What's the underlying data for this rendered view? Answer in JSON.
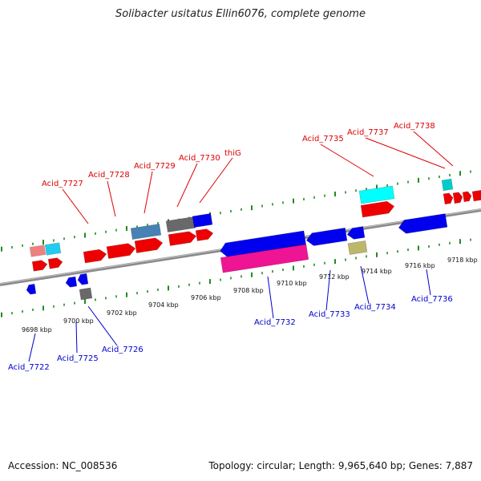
{
  "title": "Solibacter usitatus Ellin6076, complete genome",
  "footer": {
    "accession": "Accession: NC_008536",
    "summary": "Topology: circular; Length: 9,965,640 bp; Genes: 7,887"
  },
  "colors": {
    "forward_label": "#dd0000",
    "reverse_label": "#0000cc",
    "backbone": "#999999",
    "tick": "#228B22"
  },
  "scale_labels": [
    "9698 kbp",
    "9700 kbp",
    "9702 kbp",
    "9704 kbp",
    "9706 kbp",
    "9708 kbp",
    "9710 kbp",
    "9712 kbp",
    "9714 kbp",
    "9716 kbp",
    "9718 kbp"
  ],
  "forward_labels": [
    {
      "text": "Acid_7727"
    },
    {
      "text": "Acid_7728"
    },
    {
      "text": "Acid_7729"
    },
    {
      "text": "Acid_7730"
    },
    {
      "text": "thiG"
    },
    {
      "text": "Acid_7735"
    },
    {
      "text": "Acid_7737"
    },
    {
      "text": "Acid_7738"
    }
  ],
  "reverse_labels": [
    {
      "text": "Acid_7722"
    },
    {
      "text": "Acid_7725"
    },
    {
      "text": "Acid_7726"
    },
    {
      "text": "Acid_7732"
    },
    {
      "text": "Acid_7733"
    },
    {
      "text": "Acid_7734"
    },
    {
      "text": "Acid_7736"
    }
  ]
}
